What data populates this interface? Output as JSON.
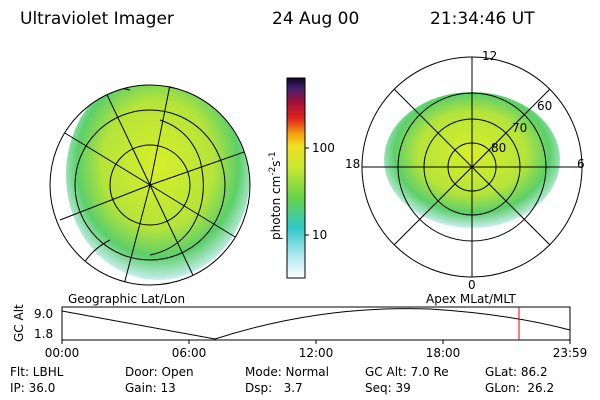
{
  "header": {
    "title": "Ultraviolet Imager",
    "date": "24 Aug 00",
    "time": "21:34:46 UT"
  },
  "left_map": {
    "caption": "Geographic Lat/Lon"
  },
  "right_map": {
    "caption": "Apex MLat/MLT",
    "mlt_labels": [
      "12",
      "18",
      "6",
      "0"
    ],
    "lat_labels": [
      "60",
      "70",
      "80"
    ]
  },
  "colorbar": {
    "label_parts": [
      "photon cm",
      "-2",
      "s",
      "-1"
    ],
    "ticks": [
      "100",
      "10"
    ]
  },
  "timeline": {
    "y_label": "GC Alt",
    "yticks": [
      "9.0",
      "1.8"
    ],
    "xticks": [
      "00:00",
      "06:00",
      "12:00",
      "18:00",
      "23:59"
    ]
  },
  "info": {
    "rows": [
      [
        "Flt: LBHL",
        "Door: Open",
        "Mode: Normal",
        "GC Alt: 7.0 Re",
        "GLat: 86.2"
      ],
      [
        "IP: 36.0",
        "Gain: 13",
        "Dsp:   3.7",
        "Seq: 39",
        "GLon:  26.2"
      ]
    ]
  }
}
